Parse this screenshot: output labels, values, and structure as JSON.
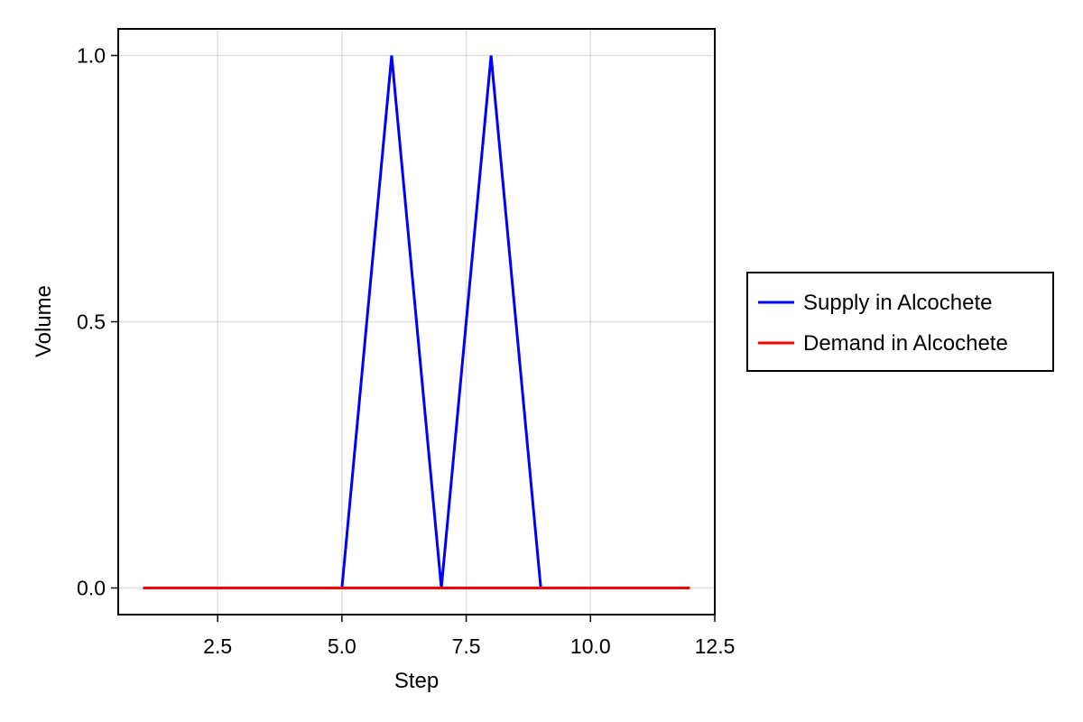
{
  "chart_data": {
    "type": "line",
    "title": "",
    "xlabel": "Step",
    "ylabel": "Volume",
    "xlim": [
      0.5,
      12.5
    ],
    "ylim": [
      -0.05,
      1.05
    ],
    "x_ticks": [
      2.5,
      5.0,
      7.5,
      10.0,
      12.5
    ],
    "x_tick_labels": [
      "2.5",
      "5.0",
      "7.5",
      "10.0",
      "12.5"
    ],
    "y_ticks": [
      0.0,
      0.5,
      1.0
    ],
    "y_tick_labels": [
      "0.0",
      "0.5",
      "1.0"
    ],
    "grid": true,
    "legend_position": "right",
    "x": [
      1,
      2,
      3,
      4,
      5,
      6,
      7,
      8,
      9,
      10,
      11,
      12
    ],
    "series": [
      {
        "name": "Supply in Alcochete",
        "color": "#0000ff",
        "values": [
          0,
          0,
          0,
          0,
          0,
          1,
          0,
          1,
          0,
          0,
          0,
          0
        ]
      },
      {
        "name": "Demand in Alcochete",
        "color": "#ff0000",
        "values": [
          0,
          0,
          0,
          0,
          0,
          0,
          0,
          0,
          0,
          0,
          0,
          0
        ]
      }
    ]
  }
}
